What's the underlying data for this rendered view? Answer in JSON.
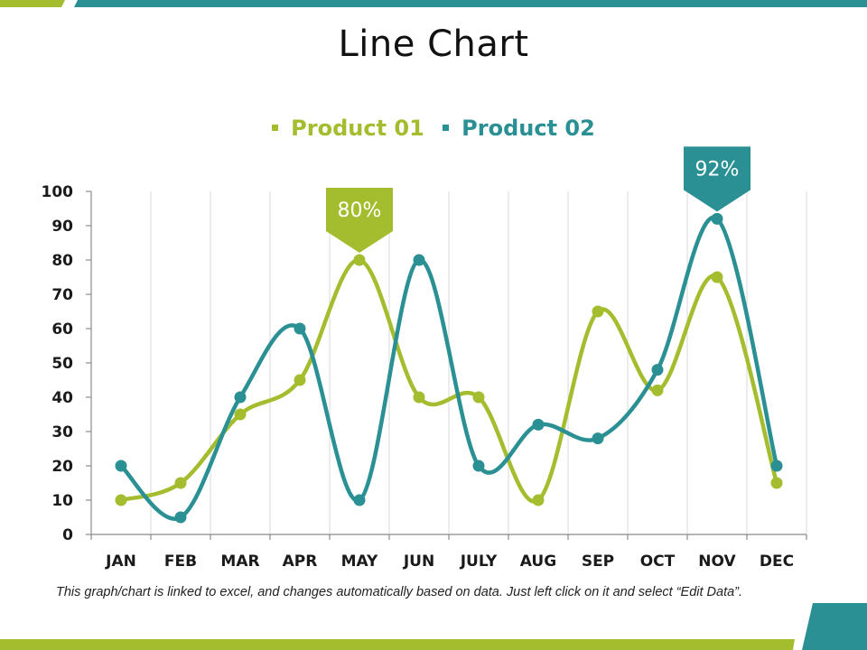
{
  "colors": {
    "product01": "#a3bd2f",
    "product02": "#2a9094",
    "grid": "#d9d9d9",
    "axis": "#8c8c8c"
  },
  "title": "Line Chart",
  "footnote": "This graph/chart is linked to excel, and changes automatically based on data. Just left click on it and select “Edit Data”.",
  "chart_data": {
    "type": "line",
    "title": "Line Chart",
    "categories": [
      "JAN",
      "FEB",
      "MAR",
      "APR",
      "MAY",
      "JUN",
      "JULY",
      "AUG",
      "SEP",
      "OCT",
      "NOV",
      "DEC"
    ],
    "series": [
      {
        "name": "Product 01",
        "color": "#a3bd2f",
        "values": [
          10,
          15,
          35,
          45,
          80,
          40,
          40,
          10,
          65,
          42,
          75,
          15
        ]
      },
      {
        "name": "Product 02",
        "color": "#2a9094",
        "values": [
          20,
          5,
          40,
          60,
          10,
          80,
          20,
          32,
          28,
          48,
          92,
          20
        ]
      }
    ],
    "ylim": [
      0,
      100
    ],
    "yticks": [
      "0",
      "10",
      "20",
      "30",
      "40",
      "50",
      "60",
      "70",
      "80",
      "90",
      "100"
    ],
    "grid": "vertical",
    "legend": "top-center",
    "smooth": true,
    "callouts": [
      {
        "series": 0,
        "category": "MAY",
        "label": "80%"
      },
      {
        "series": 1,
        "category": "NOV",
        "label": "92%"
      }
    ]
  }
}
